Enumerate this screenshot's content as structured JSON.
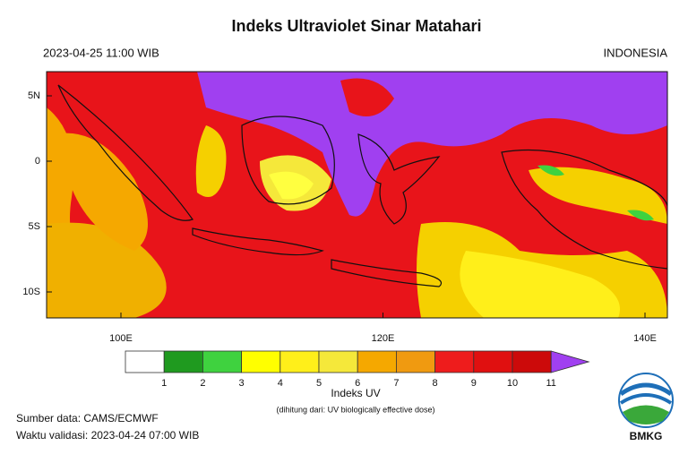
{
  "header": {
    "title": "Indeks Ultraviolet Sinar Matahari",
    "datetime": "2023-04-25   11:00 WIB",
    "region": "INDONESIA"
  },
  "map": {
    "lat_labels": [
      "5N",
      "0",
      "5S",
      "10S"
    ],
    "lon_labels": [
      "100E",
      "120E",
      "140E"
    ]
  },
  "colorbar": {
    "labels": [
      "1",
      "2",
      "3",
      "4",
      "5",
      "6",
      "7",
      "8",
      "9",
      "10",
      "11"
    ],
    "colors": [
      "#ffffff",
      "#1f9a1f",
      "#3fd23f",
      "#ffff00",
      "#ffef1a",
      "#f5e83a",
      "#f5a800",
      "#f09a10",
      "#ee1c1c",
      "#e01010",
      "#cc0a0a",
      "#a040f0"
    ],
    "title": "Indeks UV",
    "subtitle": "(dihitung dari: UV biologically effective dose)"
  },
  "footer": {
    "source": "Sumber data: CAMS/ECMWF",
    "validity": "Waktu validasi: 2023-04-24 07:00 WIB"
  },
  "logo": {
    "text": "BMKG"
  }
}
